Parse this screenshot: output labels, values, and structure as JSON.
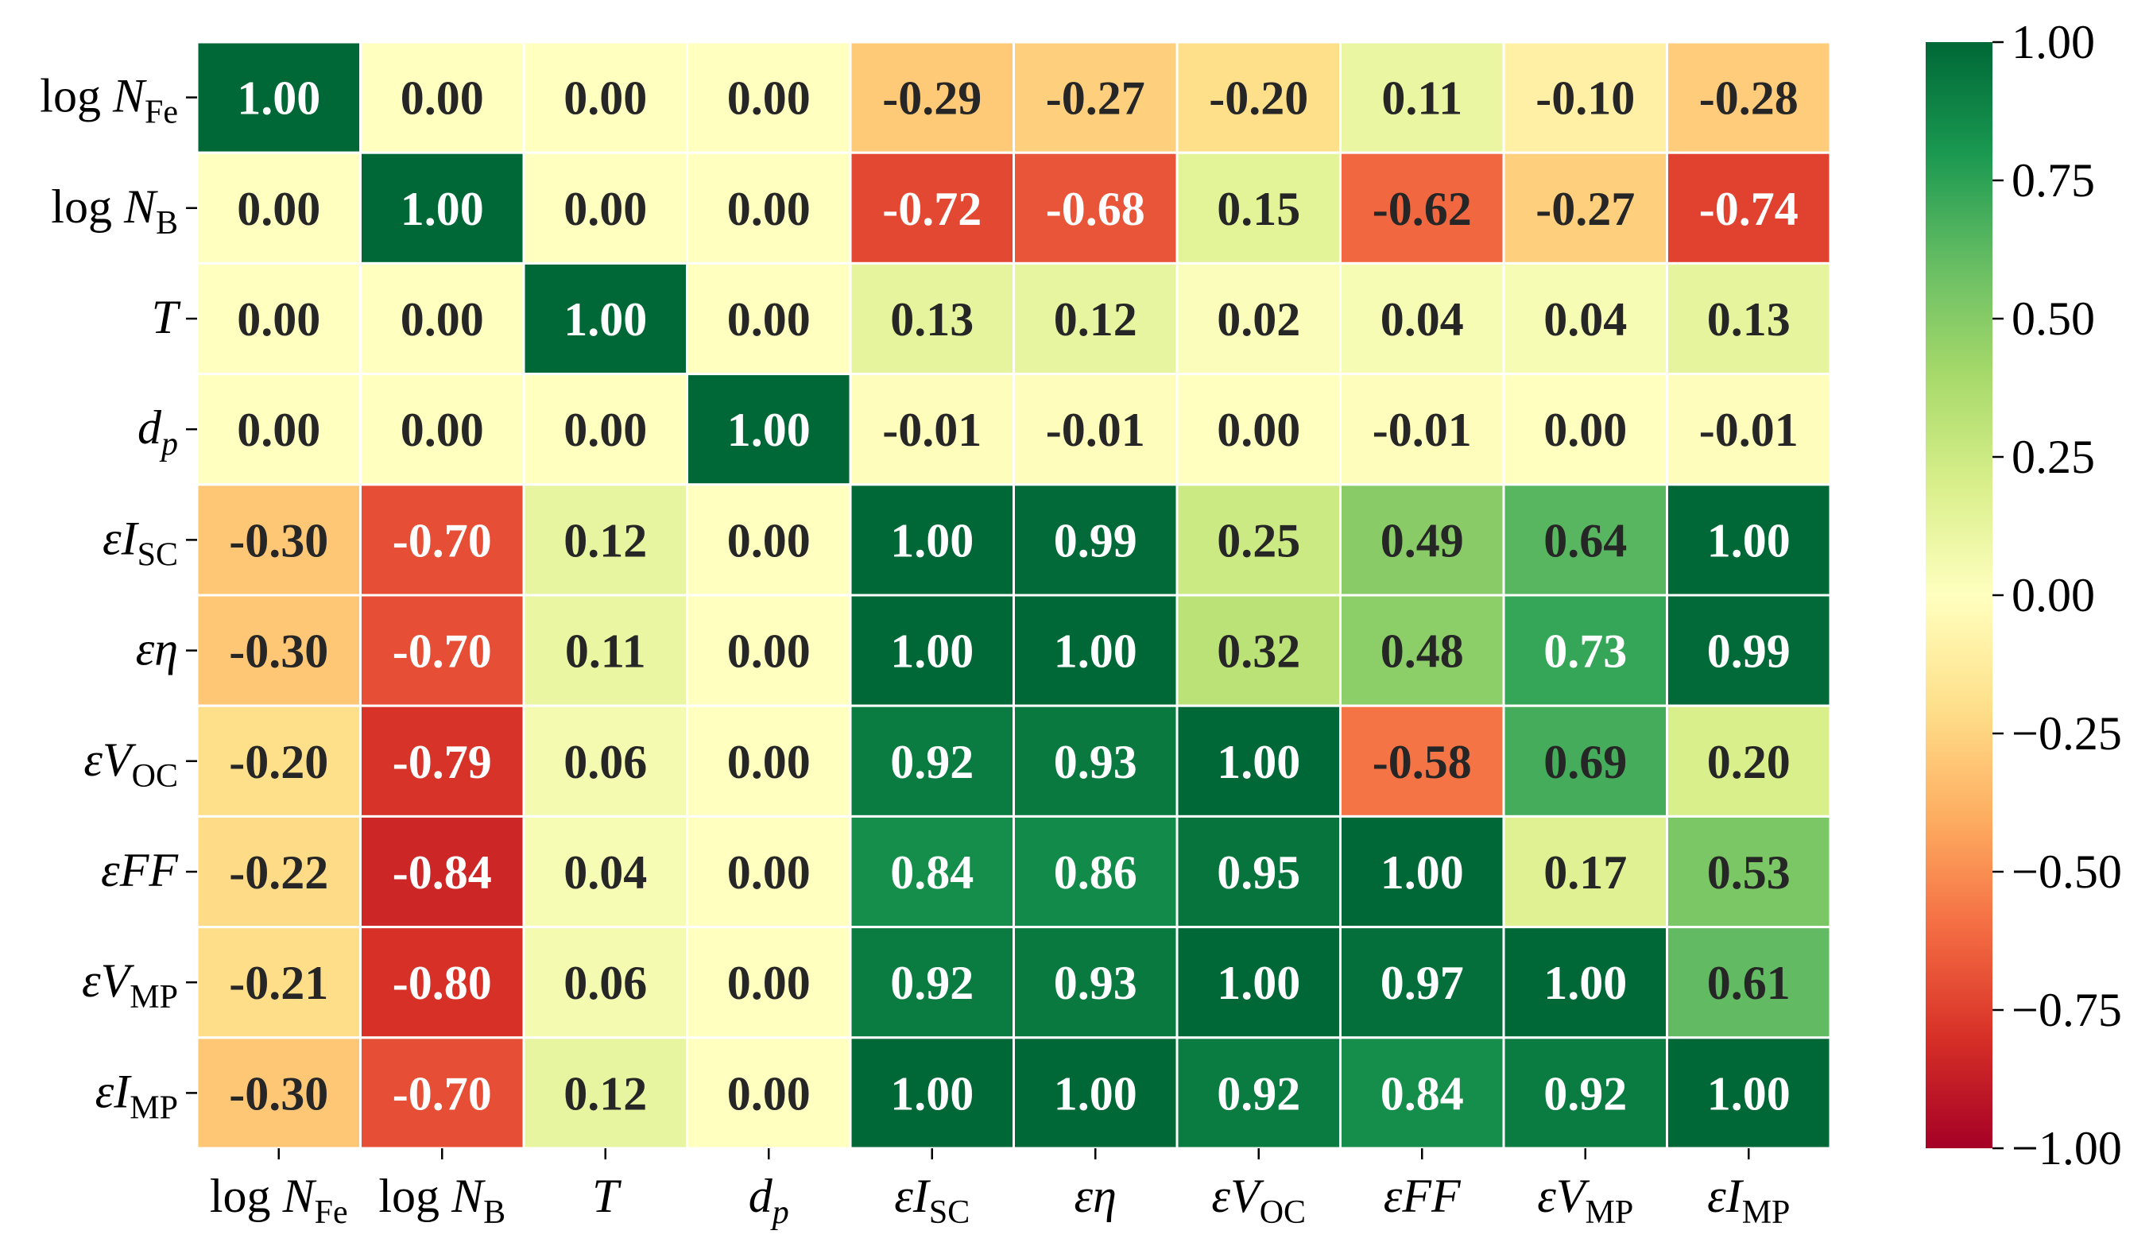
{
  "chart_data": {
    "type": "heatmap",
    "title": "",
    "xlabel": "",
    "ylabel": "",
    "rows": [
      {
        "base": "log ",
        "var": "N",
        "sub": "Fe"
      },
      {
        "base": "log ",
        "var": "N",
        "sub": "B"
      },
      {
        "base": "",
        "var": "T",
        "sub": ""
      },
      {
        "base": "",
        "var": "d",
        "sub": "p",
        "sub_italic": true
      },
      {
        "base": "",
        "var": "εI",
        "sub": "SC"
      },
      {
        "base": "",
        "var": "εη",
        "sub": ""
      },
      {
        "base": "",
        "var": "εV",
        "sub": "OC"
      },
      {
        "base": "",
        "var": "εFF",
        "sub": ""
      },
      {
        "base": "",
        "var": "εV",
        "sub": "MP"
      },
      {
        "base": "",
        "var": "εI",
        "sub": "MP"
      }
    ],
    "columns": [
      {
        "base": "log ",
        "var": "N",
        "sub": "Fe"
      },
      {
        "base": "log ",
        "var": "N",
        "sub": "B"
      },
      {
        "base": "",
        "var": "T",
        "sub": ""
      },
      {
        "base": "",
        "var": "d",
        "sub": "p",
        "sub_italic": true
      },
      {
        "base": "",
        "var": "εI",
        "sub": "SC"
      },
      {
        "base": "",
        "var": "εη",
        "sub": ""
      },
      {
        "base": "",
        "var": "εV",
        "sub": "OC"
      },
      {
        "base": "",
        "var": "εFF",
        "sub": ""
      },
      {
        "base": "",
        "var": "εV",
        "sub": "MP"
      },
      {
        "base": "",
        "var": "εI",
        "sub": "MP"
      }
    ],
    "values": [
      [
        1.0,
        0.0,
        0.0,
        0.0,
        -0.29,
        -0.27,
        -0.2,
        0.11,
        -0.1,
        -0.28
      ],
      [
        0.0,
        1.0,
        0.0,
        0.0,
        -0.72,
        -0.68,
        0.15,
        -0.62,
        -0.27,
        -0.74
      ],
      [
        0.0,
        0.0,
        1.0,
        0.0,
        0.13,
        0.12,
        0.02,
        0.04,
        0.04,
        0.13
      ],
      [
        0.0,
        0.0,
        0.0,
        1.0,
        -0.01,
        -0.01,
        0.0,
        -0.01,
        0.0,
        -0.01
      ],
      [
        -0.3,
        -0.7,
        0.12,
        0.0,
        1.0,
        0.99,
        0.25,
        0.49,
        0.64,
        1.0
      ],
      [
        -0.3,
        -0.7,
        0.11,
        0.0,
        1.0,
        1.0,
        0.32,
        0.48,
        0.73,
        0.99
      ],
      [
        -0.2,
        -0.79,
        0.06,
        0.0,
        0.92,
        0.93,
        1.0,
        -0.58,
        0.69,
        0.2
      ],
      [
        -0.22,
        -0.84,
        0.04,
        0.0,
        0.84,
        0.86,
        0.95,
        1.0,
        0.17,
        0.53
      ],
      [
        -0.21,
        -0.8,
        0.06,
        0.0,
        0.92,
        0.93,
        1.0,
        0.97,
        1.0,
        0.61
      ],
      [
        -0.3,
        -0.7,
        0.12,
        0.0,
        1.0,
        1.0,
        0.92,
        0.84,
        0.92,
        1.0
      ]
    ],
    "colorbar": {
      "colormap": "RdYlGn",
      "vmin": -1.0,
      "vmax": 1.0,
      "ticks": [
        1.0,
        0.75,
        0.5,
        0.25,
        0.0,
        -0.25,
        -0.5,
        -0.75,
        -1.0
      ],
      "tick_labels": [
        "1.00",
        "0.75",
        "0.50",
        "0.25",
        "0.00",
        "−0.25",
        "−0.50",
        "−0.75",
        "−1.00"
      ]
    },
    "grid": true
  }
}
